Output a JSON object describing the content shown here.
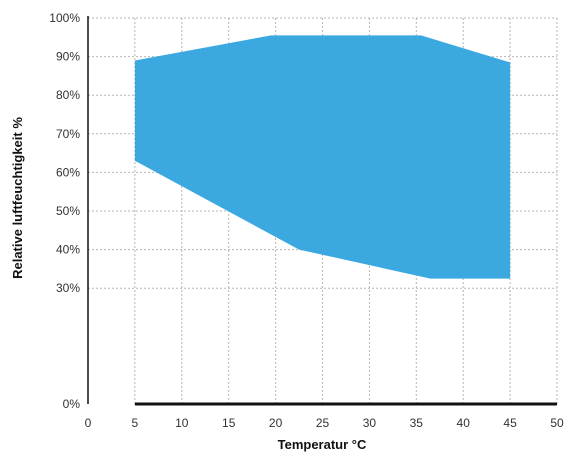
{
  "chart_data": {
    "type": "area",
    "xlabel": "Temperatur °C",
    "ylabel": "Relative luftfeuchtigkeit  %",
    "xlim": [
      0,
      50
    ],
    "ylim": [
      0,
      100
    ],
    "x_ticks": [
      "0",
      "5",
      "10",
      "15",
      "20",
      "25",
      "30",
      "35",
      "40",
      "45",
      "50"
    ],
    "y_ticks": [
      "0%",
      "30%",
      "40%",
      "50%",
      "60%",
      "70%",
      "80%",
      "90%",
      "100%"
    ],
    "y_tick_values": [
      0,
      30,
      40,
      50,
      60,
      70,
      80,
      90,
      100
    ],
    "x_tick_values": [
      0,
      5,
      10,
      15,
      20,
      25,
      30,
      35,
      40,
      45,
      50
    ],
    "grid": true,
    "fill_color": "#3ba9e0",
    "region": {
      "upper": [
        {
          "x": 5,
          "y": 89
        },
        {
          "x": 19.5,
          "y": 95.5
        },
        {
          "x": 35.5,
          "y": 95.5
        },
        {
          "x": 45,
          "y": 88.5
        }
      ],
      "lower": [
        {
          "x": 5,
          "y": 63
        },
        {
          "x": 22.5,
          "y": 40
        },
        {
          "x": 36.5,
          "y": 32.5
        },
        {
          "x": 45,
          "y": 32.5
        }
      ]
    }
  }
}
